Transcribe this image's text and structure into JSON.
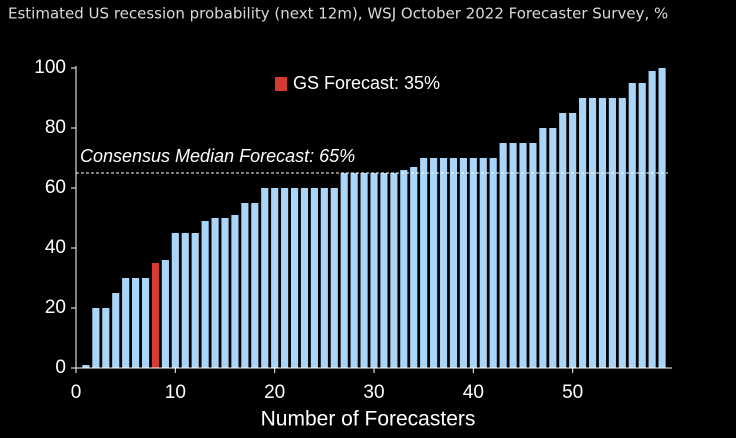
{
  "chart_data": {
    "type": "bar",
    "title": "Estimated US recession probability (next 12m), WSJ October 2022 Forecaster Survey, %",
    "x_label": "Number of Forecasters",
    "x": [
      1,
      2,
      3,
      4,
      5,
      6,
      7,
      8,
      9,
      10,
      11,
      12,
      13,
      14,
      15,
      16,
      17,
      18,
      19,
      20,
      21,
      22,
      23,
      24,
      25,
      26,
      27,
      28,
      29,
      30,
      31,
      32,
      33,
      34,
      35,
      36,
      37,
      38,
      39,
      40,
      41,
      42,
      43,
      44,
      45,
      46,
      47,
      48,
      49,
      50,
      51,
      52,
      53,
      54,
      55,
      56,
      57,
      58,
      59
    ],
    "series": [
      {
        "color": "#a8d5f8",
        "values": [
          1,
          20,
          20,
          25,
          30,
          30,
          30,
          null,
          36,
          45,
          45,
          45,
          49,
          50,
          50,
          51,
          55,
          55,
          60,
          60,
          60,
          60,
          60,
          60,
          60,
          60,
          65,
          65,
          65,
          65,
          65,
          65,
          66,
          67,
          70,
          70,
          70,
          70,
          70,
          70,
          70,
          70,
          75,
          75,
          75,
          75,
          80,
          80,
          85,
          85,
          90,
          90,
          90,
          90,
          90,
          95,
          95,
          99,
          100
        ]
      },
      {
        "name": "GS Forecast: 35%",
        "color": "#d63a33",
        "values": [
          null,
          null,
          null,
          null,
          null,
          null,
          null,
          35,
          null,
          null,
          null,
          null,
          null,
          null,
          null,
          null,
          null,
          null,
          null,
          null,
          null,
          null,
          null,
          null,
          null,
          null,
          null,
          null,
          null,
          null,
          null,
          null,
          null,
          null,
          null,
          null,
          null,
          null,
          null,
          null,
          null,
          null,
          null,
          null,
          null,
          null,
          null,
          null,
          null,
          null,
          null,
          null,
          null,
          null,
          null,
          null,
          null,
          null,
          null
        ]
      }
    ],
    "reference_lines": [
      {
        "value": 65,
        "label": "Consensus Median Forecast: 65%"
      }
    ],
    "xlim": [
      0,
      60
    ],
    "xticks": [
      0,
      10,
      20,
      30,
      40,
      50
    ],
    "ylim": [
      0,
      100
    ],
    "yticks": [
      0,
      20,
      40,
      60,
      80,
      100
    ]
  }
}
